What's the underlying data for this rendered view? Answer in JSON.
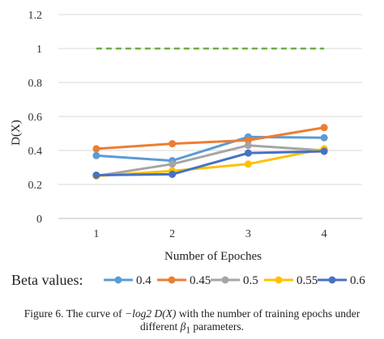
{
  "chart_data": {
    "type": "line",
    "categories": [
      "1",
      "2",
      "3",
      "4"
    ],
    "ylabel": "D(X)",
    "xlabel": "Number of Epoches",
    "ylim": [
      0,
      1.2
    ],
    "yticks": [
      "0",
      "0.2",
      "0.4",
      "0.6",
      "0.8",
      "1",
      "1.2"
    ],
    "ytick_values": [
      0,
      0.2,
      0.4,
      0.6,
      0.8,
      1.0,
      1.2
    ],
    "grid": true,
    "legend_title": "Beta values:",
    "legend_position": "bottom",
    "reference_line": {
      "value": 1.0,
      "color": "#70ad47",
      "style": "dashed"
    },
    "series": [
      {
        "name": "0.4",
        "color": "#5b9bd5",
        "values": [
          0.37,
          0.34,
          0.48,
          0.475
        ]
      },
      {
        "name": "0.45",
        "color": "#ed7d31",
        "values": [
          0.41,
          0.44,
          0.46,
          0.535
        ]
      },
      {
        "name": "0.5",
        "color": "#a5a5a5",
        "values": [
          0.25,
          0.32,
          0.43,
          0.4
        ]
      },
      {
        "name": "0.55",
        "color": "#ffc000",
        "values": [
          0.25,
          0.28,
          0.32,
          0.41
        ]
      },
      {
        "name": "0.6",
        "color": "#4472c4",
        "values": [
          0.255,
          0.26,
          0.385,
          0.395
        ]
      }
    ]
  },
  "caption": {
    "line1_pre": "Figure 6. The curve of ",
    "line1_math": "−log2 D(X)",
    "line1_post": " with the number of training epochs under",
    "line2_pre": "different ",
    "line2_math": "β",
    "line2_sub": "1",
    "line2_post": " parameters."
  }
}
